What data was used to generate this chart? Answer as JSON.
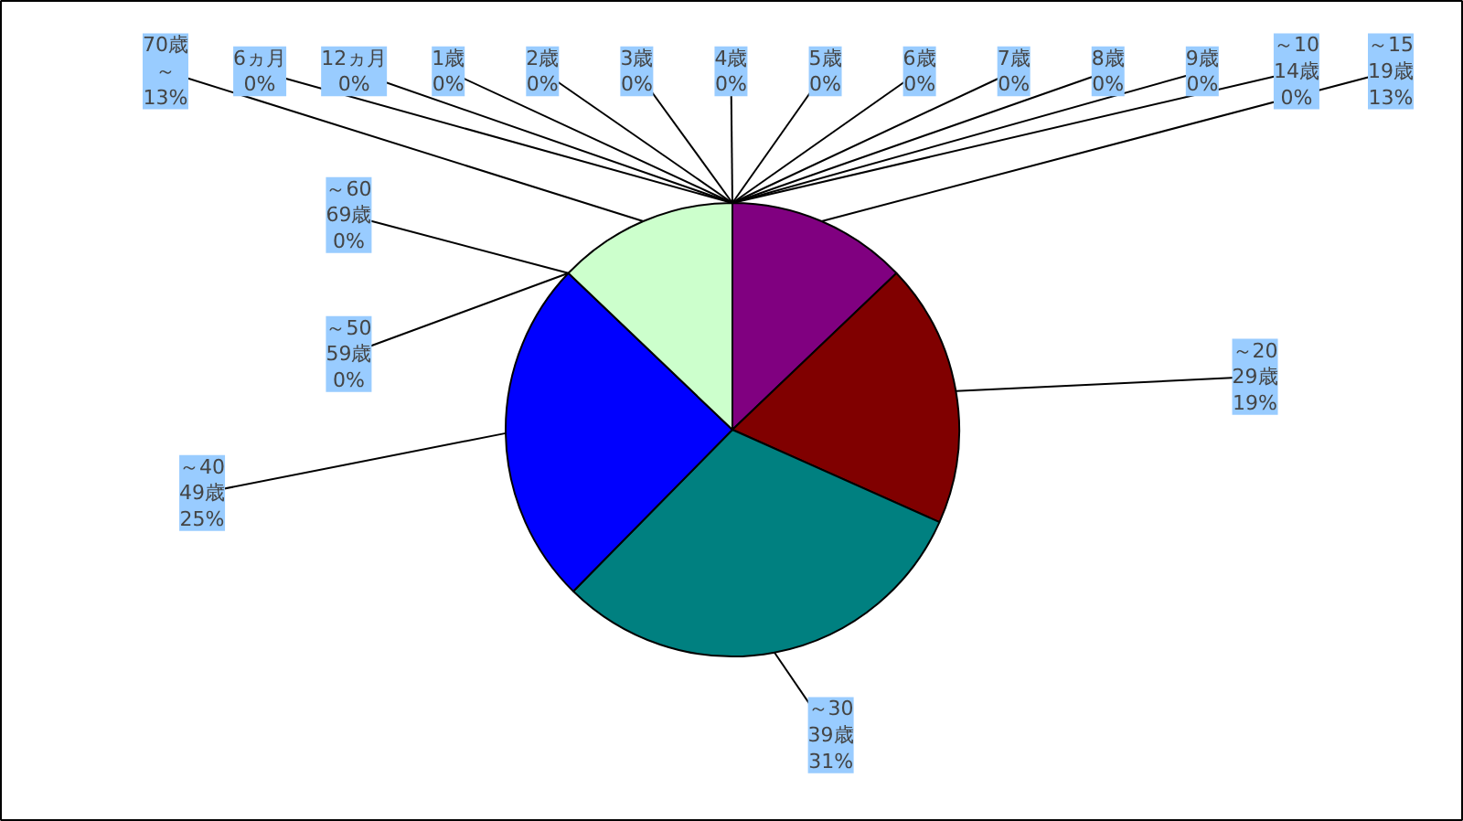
{
  "chart_data": {
    "type": "pie",
    "categories": [
      "～15\n19歳",
      "～20\n29歳",
      "～30\n39歳",
      "～40\n49歳",
      "～50\n59歳",
      "～60\n69歳",
      "70歳～",
      "6ヵ月",
      "12ヵ月",
      "1歳",
      "2歳",
      "3歳",
      "4歳",
      "5歳",
      "6歳",
      "7歳",
      "8歳",
      "9歳",
      "～10\n14歳"
    ],
    "values": [
      13,
      19,
      31,
      25,
      0,
      0,
      13,
      0,
      0,
      0,
      0,
      0,
      0,
      0,
      0,
      0,
      0,
      0,
      0
    ],
    "value_labels": [
      "13%",
      "19%",
      "31%",
      "25%",
      "0%",
      "0%",
      "13%",
      "0%",
      "0%",
      "0%",
      "0%",
      "0%",
      "0%",
      "0%",
      "0%",
      "0%",
      "0%",
      "0%",
      "0%"
    ],
    "colors": [
      "#800080",
      "#800000",
      "#008080",
      "#0000ff",
      "#9999ff",
      "#993366",
      "#ccffcc",
      "#ffffcc",
      "#ccffff",
      "#660066",
      "#ff8080",
      "#0066cc",
      "#ccccff",
      "#000080",
      "#ff00ff",
      "#ffff00",
      "#00ffff",
      "#800080",
      "#800000"
    ]
  }
}
